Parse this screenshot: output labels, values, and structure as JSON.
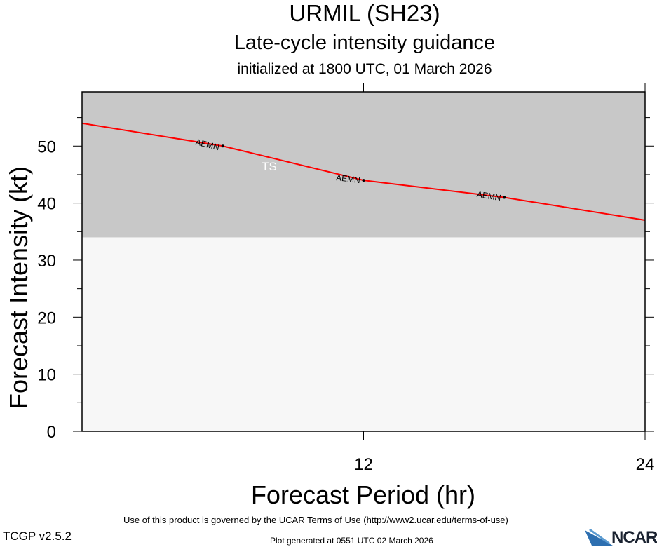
{
  "chart_data": {
    "type": "line",
    "title": "URMIL (SH23)",
    "subtitle": "Late-cycle intensity guidance",
    "subtitle2": "initialized at 1800 UTC, 01 March 2026",
    "xlabel": "Forecast Period (hr)",
    "ylabel": "Forecast Intensity (kt)",
    "xlim": [
      0,
      24
    ],
    "ylim": [
      0,
      59.5
    ],
    "xticks": [
      12,
      24
    ],
    "yticks": [
      0,
      10,
      20,
      30,
      40,
      50
    ],
    "grid": false,
    "region": {
      "label": "TS",
      "y_from": 34,
      "y_to": 59.5,
      "color": "#c8c8c8"
    },
    "background_color": "#f7f7f7",
    "series": [
      {
        "name": "AEMN",
        "color": "#ff0000",
        "x": [
          0,
          6,
          12,
          18,
          24
        ],
        "y": [
          54,
          50,
          44,
          41,
          37
        ],
        "labeled_points": [
          6,
          12,
          18
        ]
      }
    ]
  },
  "footer": {
    "terms": "Use of this product is governed by the UCAR Terms of Use (http://www2.ucar.edu/terms-of-use)",
    "version": "TCGP v2.5.2",
    "generated": "Plot generated at 0551 UTC   02 March 2026",
    "logo_text": "NCAR"
  }
}
